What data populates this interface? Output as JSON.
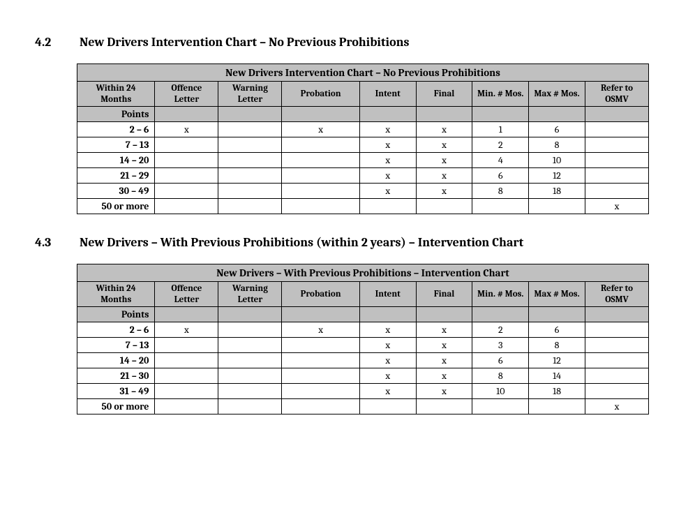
{
  "section1": {
    "number": "4.2",
    "title": "New Drivers Intervention Chart – No Previous Prohibitions",
    "table_title": "New Drivers Intervention Chart – No Previous Prohibitions",
    "columns": [
      "Within 24 Months",
      "Offence Letter",
      "Warning Letter",
      "Probation",
      "Intent",
      "Final",
      "Min. # Mos.",
      "Max # Mos.",
      "Refer to OSMV"
    ],
    "points_label": "Points",
    "rows": [
      {
        "range": "2 – 6",
        "offence": "x",
        "warning": "",
        "probation": "x",
        "intent": "x",
        "final": "x",
        "min": "1",
        "max": "6",
        "refer": ""
      },
      {
        "range": "7 – 13",
        "offence": "",
        "warning": "",
        "probation": "",
        "intent": "x",
        "final": "x",
        "min": "2",
        "max": "8",
        "refer": ""
      },
      {
        "range": "14 – 20",
        "offence": "",
        "warning": "",
        "probation": "",
        "intent": "x",
        "final": "x",
        "min": "4",
        "max": "10",
        "refer": ""
      },
      {
        "range": "21 – 29",
        "offence": "",
        "warning": "",
        "probation": "",
        "intent": "x",
        "final": "x",
        "min": "6",
        "max": "12",
        "refer": ""
      },
      {
        "range": "30 – 49",
        "offence": "",
        "warning": "",
        "probation": "",
        "intent": "x",
        "final": "x",
        "min": "8",
        "max": "18",
        "refer": ""
      },
      {
        "range": "50 or more",
        "offence": "",
        "warning": "",
        "probation": "",
        "intent": "",
        "final": "",
        "min": "",
        "max": "",
        "refer": "x"
      }
    ]
  },
  "section2": {
    "number": "4.3",
    "title": "New Drivers – With Previous Prohibitions (within 2 years) – Intervention Chart",
    "table_title": "New Drivers – With Previous Prohibitions – Intervention Chart",
    "columns": [
      "Within 24 Months",
      "Offence Letter",
      "Warning Letter",
      "Probation",
      "Intent",
      "Final",
      "Min. # Mos.",
      "Max # Mos.",
      "Refer to OSMV"
    ],
    "points_label": "Points",
    "rows": [
      {
        "range": "2 – 6",
        "offence": "x",
        "warning": "",
        "probation": "x",
        "intent": "x",
        "final": "x",
        "min": "2",
        "max": "6",
        "refer": ""
      },
      {
        "range": "7 – 13",
        "offence": "",
        "warning": "",
        "probation": "",
        "intent": "x",
        "final": "x",
        "min": "3",
        "max": "8",
        "refer": ""
      },
      {
        "range": "14 – 20",
        "offence": "",
        "warning": "",
        "probation": "",
        "intent": "x",
        "final": "x",
        "min": "6",
        "max": "12",
        "refer": ""
      },
      {
        "range": "21 – 30",
        "offence": "",
        "warning": "",
        "probation": "",
        "intent": "x",
        "final": "x",
        "min": "8",
        "max": "14",
        "refer": ""
      },
      {
        "range": "31 – 49",
        "offence": "",
        "warning": "",
        "probation": "",
        "intent": "x",
        "final": "x",
        "min": "10",
        "max": "18",
        "refer": ""
      },
      {
        "range": "50 or more",
        "offence": "",
        "warning": "",
        "probation": "",
        "intent": "",
        "final": "",
        "min": "",
        "max": "",
        "refer": "x"
      }
    ]
  },
  "style": {
    "header_bg": "#c0c0c0",
    "border_color": "#000000",
    "background_color": "#ffffff",
    "text_color": "#000000",
    "heading_fontsize": 18,
    "cell_fontsize": 14,
    "header_fontsize": 13
  }
}
